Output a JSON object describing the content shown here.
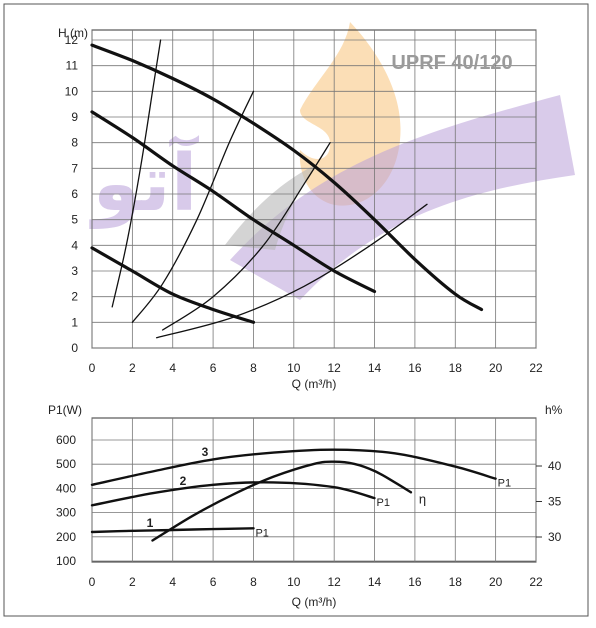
{
  "watermark": {
    "text": "آتو",
    "color": "#b9a0d9",
    "flame_color": "#f8c27a"
  },
  "chart_data": [
    {
      "type": "line",
      "title": "UPRF 40/120",
      "xlabel": "Q (m³/h)",
      "ylabel": "H (m)",
      "xlim": [
        0,
        22
      ],
      "ylim": [
        0,
        12
      ],
      "xticks": [
        0,
        2,
        4,
        6,
        8,
        10,
        12,
        14,
        16,
        18,
        20,
        22
      ],
      "yticks": [
        0,
        1,
        2,
        3,
        4,
        5,
        6,
        7,
        8,
        9,
        10,
        11,
        12
      ],
      "grid": true,
      "series": [
        {
          "kind": "pump",
          "x": [
            0,
            2,
            4,
            6,
            8,
            10,
            12,
            14,
            16,
            18,
            19.3
          ],
          "y": [
            11.8,
            11.2,
            10.5,
            9.7,
            8.75,
            7.7,
            6.45,
            5.0,
            3.45,
            2.1,
            1.5
          ]
        },
        {
          "kind": "pump",
          "x": [
            0,
            2,
            4,
            6,
            8,
            10,
            12,
            14
          ],
          "y": [
            9.2,
            8.2,
            7.1,
            6.1,
            5.0,
            4.0,
            3.0,
            2.2
          ]
        },
        {
          "kind": "pump",
          "x": [
            0,
            2,
            4,
            6,
            8
          ],
          "y": [
            3.9,
            3.0,
            2.1,
            1.5,
            1.0
          ]
        },
        {
          "kind": "system",
          "x": [
            1,
            1.7,
            2.4,
            3.0,
            3.4
          ],
          "y": [
            1.6,
            4.0,
            7.0,
            10.0,
            12.0
          ]
        },
        {
          "kind": "system",
          "x": [
            2,
            3.5,
            5.2,
            6.8,
            8.0
          ],
          "y": [
            1.0,
            2.5,
            5.0,
            8.0,
            10.0
          ]
        },
        {
          "kind": "system",
          "x": [
            3.5,
            6.0,
            8.5,
            10.6,
            11.8
          ],
          "y": [
            0.7,
            2.0,
            4.0,
            6.5,
            8.0
          ]
        },
        {
          "kind": "system",
          "x": [
            3.2,
            7.0,
            10.5,
            13.8,
            16.6
          ],
          "y": [
            0.4,
            1.2,
            2.4,
            4.0,
            5.6
          ]
        }
      ]
    },
    {
      "type": "line",
      "title": "",
      "xlabel": "Q (m³/h)",
      "ylabel": "P1(W)",
      "y2label": "h%",
      "xlim": [
        0,
        22
      ],
      "ylim": [
        100,
        600
      ],
      "y2lim": [
        28.3,
        44
      ],
      "xticks": [
        0,
        2,
        4,
        6,
        8,
        10,
        12,
        14,
        16,
        18,
        20,
        22
      ],
      "yticks": [
        100,
        200,
        300,
        400,
        500,
        600
      ],
      "y2ticks": [
        30,
        35,
        40
      ],
      "grid": true,
      "series": [
        {
          "name": "3",
          "end_label": "P1",
          "axis": "left",
          "x": [
            0,
            3,
            6,
            9,
            12,
            15,
            18,
            20
          ],
          "y": [
            415,
            470,
            520,
            548,
            560,
            545,
            490,
            440
          ]
        },
        {
          "name": "2",
          "end_label": "P1",
          "axis": "left",
          "x": [
            0,
            3,
            6,
            9,
            12,
            14
          ],
          "y": [
            330,
            380,
            415,
            425,
            405,
            360
          ]
        },
        {
          "name": "1",
          "end_label": "P1",
          "axis": "left",
          "x": [
            0,
            2,
            4,
            6,
            8
          ],
          "y": [
            220,
            225,
            228,
            232,
            235
          ]
        },
        {
          "name": "",
          "end_label": "η",
          "axis": "right",
          "x": [
            3,
            5,
            7,
            9,
            11,
            12,
            13,
            14,
            15,
            15.8
          ],
          "y": [
            29.5,
            33.0,
            36.0,
            38.5,
            40.3,
            40.6,
            40.3,
            39.3,
            37.7,
            36.3
          ]
        }
      ]
    }
  ]
}
